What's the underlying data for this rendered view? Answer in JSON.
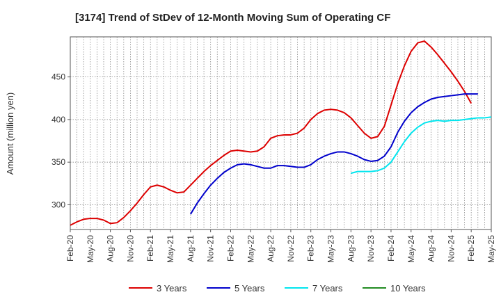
{
  "chart_data": {
    "type": "line",
    "title": "[3174]  Trend of StDev of 12-Month Moving Sum of Operating CF",
    "xlabel": "",
    "ylabel": "Amount (million yen)",
    "ylim": [
      271,
      497
    ],
    "yticks": [
      300,
      350,
      400,
      450
    ],
    "grid": true,
    "legend_position": "bottom",
    "x_tick_labels": [
      "Feb-20",
      "May-20",
      "Aug-20",
      "Nov-20",
      "Feb-21",
      "May-21",
      "Aug-21",
      "Nov-21",
      "Feb-22",
      "May-22",
      "Aug-22",
      "Nov-22",
      "Feb-23",
      "May-23",
      "Aug-23",
      "Nov-23",
      "Feb-24",
      "May-24",
      "Aug-24",
      "Nov-24",
      "Feb-25",
      "May-25"
    ],
    "series": [
      {
        "name": "3 Years",
        "color": "#dd0000",
        "start_index": 0,
        "values": [
          276,
          280,
          283,
          284,
          284,
          282,
          278,
          279,
          285,
          293,
          302,
          312,
          321,
          323,
          321,
          317,
          314,
          315,
          323,
          331,
          339,
          346,
          352,
          358,
          363,
          364,
          363,
          362,
          363,
          368,
          378,
          381,
          382,
          382,
          384,
          390,
          400,
          407,
          411,
          412,
          411,
          408,
          402,
          393,
          384,
          378,
          380,
          392,
          417,
          442,
          463,
          480,
          490,
          492,
          485,
          476,
          466,
          456,
          445,
          433,
          419
        ]
      },
      {
        "name": "5 Years",
        "color": "#0000cc",
        "start_index": 18,
        "values": [
          289,
          302,
          313,
          323,
          331,
          338,
          343,
          347,
          348,
          347,
          345,
          343,
          343,
          346,
          346,
          345,
          344,
          344,
          347,
          353,
          357,
          360,
          362,
          362,
          360,
          357,
          353,
          351,
          352,
          357,
          368,
          385,
          398,
          408,
          415,
          420,
          424,
          426,
          427,
          428,
          429,
          430,
          430,
          430
        ]
      },
      {
        "name": "7 Years",
        "color": "#00e5ee",
        "start_index": 42,
        "values": [
          337,
          339,
          339,
          339,
          340,
          343,
          350,
          362,
          374,
          384,
          391,
          396,
          398,
          399,
          398,
          399,
          399,
          400,
          401,
          402,
          402,
          403
        ]
      },
      {
        "name": "10 Years",
        "color": "#228b22",
        "start_index": 0,
        "values": []
      }
    ]
  }
}
